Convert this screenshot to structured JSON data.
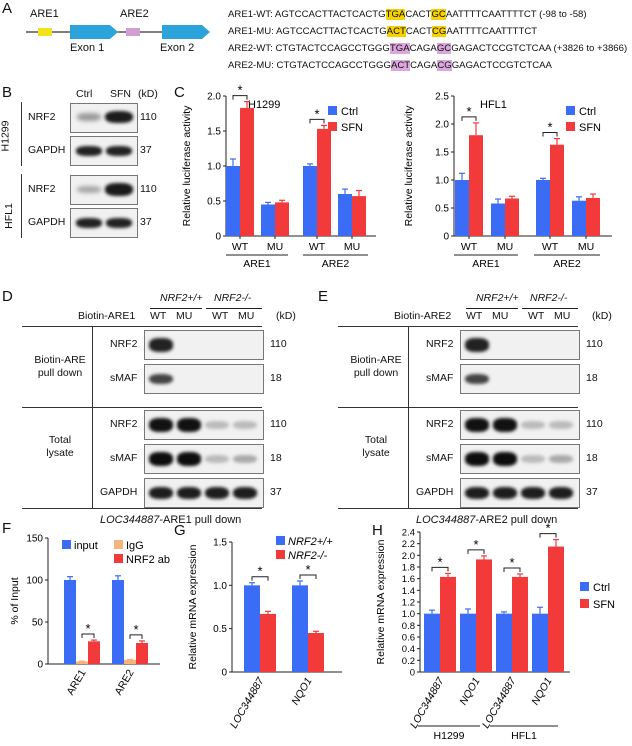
{
  "figure": {
    "panels": [
      "A",
      "B",
      "C",
      "D",
      "E",
      "F",
      "G",
      "H"
    ]
  },
  "panel_a": {
    "labels": [
      "ARE1",
      "ARE2",
      "Exon 1",
      "Exon 2"
    ],
    "seq_rows": [
      {
        "name": "ARE1-WT:",
        "pre": "AGTCCACTTACTCACTG",
        "h1": "TGA",
        "mid": "CACT",
        "h2": "GC",
        "post": "AATTTTCAATTTTCT",
        "range": " (-98 to -58)"
      },
      {
        "name": "ARE1-MU:",
        "pre": "AGTCCACTTACTCACTG",
        "h1": "ACT",
        "mid": "CACT",
        "h2": "CG",
        "post": "AATTTTCAATTTTCT",
        "range": ""
      },
      {
        "name": "ARE2-WT:",
        "pre": "CTGTACTCCAGCCTGGG",
        "h1": "TGA",
        "mid": "CAGA",
        "h2": "GC",
        "post": "GAGACTCCGTCTCAA",
        "range": " (+3826 to +3866)"
      },
      {
        "name": "ARE2-MU:",
        "pre": "CTGTACTCCAGCCTGGG",
        "h1": "ACT",
        "mid": "CAGA",
        "h2": "CG",
        "post": "GAGACTCCGTCTCAA",
        "range": ""
      }
    ],
    "colors": {
      "are1": "#f2e21a",
      "are2": "#cfa0d2",
      "exon": "#2da3dc",
      "highlight1": "#f6d200",
      "highlight2": "#dba7dc"
    }
  },
  "panel_b": {
    "ctrl": "Ctrl",
    "sfn": "SFN",
    "kd": "(kD)",
    "cell_lines": [
      "H1299",
      "HFL1"
    ],
    "rows": [
      {
        "name": "NRF2",
        "kd": "110"
      },
      {
        "name": "GAPDH",
        "kd": "37"
      },
      {
        "name": "NRF2",
        "kd": "110"
      },
      {
        "name": "GAPDH",
        "kd": "37"
      }
    ]
  },
  "panel_d": {
    "biotin": "Biotin-ARE1",
    "geno_pos": "NRF2+/+",
    "geno_neg": "NRF2-/-",
    "lanes": [
      "WT",
      "MU",
      "WT",
      "MU"
    ],
    "kd": "(kD)",
    "section1": "Biotin-ARE pull down",
    "section2": "Total lysate",
    "rows": [
      {
        "name": "NRF2",
        "kd": "110"
      },
      {
        "name": "sMAF",
        "kd": "18"
      },
      {
        "name": "NRF2",
        "kd": "110"
      },
      {
        "name": "sMAF",
        "kd": "18"
      },
      {
        "name": "GAPDH",
        "kd": "37"
      }
    ],
    "caption_gene": "LOC344887",
    "caption_rest": "-ARE1 pull down"
  },
  "panel_e": {
    "biotin": "Biotin-ARE2",
    "geno_pos": "NRF2+/+",
    "geno_neg": "NRF2-/-",
    "lanes": [
      "WT",
      "MU",
      "WT",
      "MU"
    ],
    "kd": "(kD)",
    "section1": "Biotin-ARE pull down",
    "section2": "Total lysate",
    "rows": [
      {
        "name": "NRF2",
        "kd": "110"
      },
      {
        "name": "sMAF",
        "kd": "18"
      },
      {
        "name": "NRF2",
        "kd": "110"
      },
      {
        "name": "sMAF",
        "kd": "18"
      },
      {
        "name": "GAPDH",
        "kd": "37"
      }
    ],
    "caption_gene": "LOC344887",
    "caption_rest": "-ARE2 pull down"
  },
  "chart_data": [
    {
      "panel": "C",
      "type": "bar",
      "title": "H1299",
      "ylabel": "Relative luciferase activity",
      "ylim": [
        0,
        2.0
      ],
      "yticks": [
        "0",
        "0.5",
        "1.0",
        "1.5",
        "2.0"
      ],
      "categories": [
        "WT",
        "MU",
        "WT",
        "MU"
      ],
      "groups": [
        "ARE1",
        "ARE2"
      ],
      "series": [
        {
          "name": "Ctrl",
          "color": "#3b6cf5",
          "values": [
            1.0,
            0.45,
            1.0,
            0.6
          ],
          "errors": [
            0.1,
            0.03,
            0.03,
            0.07
          ]
        },
        {
          "name": "SFN",
          "color": "#f23a3a",
          "values": [
            1.83,
            0.48,
            1.53,
            0.57
          ],
          "errors": [
            0.09,
            0.03,
            0.05,
            0.08
          ]
        }
      ],
      "significance": [
        "*",
        "",
        "*",
        ""
      ]
    },
    {
      "panel": "C",
      "type": "bar",
      "title": "HFL1",
      "ylabel": "Relative luciferase activity",
      "ylim": [
        0,
        2.5
      ],
      "yticks": [
        "0",
        "0.5",
        "1.0",
        "1.5",
        "2.0",
        "2.5"
      ],
      "categories": [
        "WT",
        "MU",
        "WT",
        "MU"
      ],
      "groups": [
        "ARE1",
        "ARE2"
      ],
      "series": [
        {
          "name": "Ctrl",
          "color": "#3b6cf5",
          "values": [
            1.0,
            0.58,
            1.0,
            0.63
          ],
          "errors": [
            0.12,
            0.08,
            0.03,
            0.07
          ]
        },
        {
          "name": "SFN",
          "color": "#f23a3a",
          "values": [
            1.8,
            0.67,
            1.63,
            0.68
          ],
          "errors": [
            0.22,
            0.04,
            0.11,
            0.07
          ]
        }
      ],
      "significance": [
        "*",
        "",
        "*",
        ""
      ]
    },
    {
      "panel": "F",
      "type": "bar",
      "ylabel": "% of Input",
      "ylim": [
        0,
        150
      ],
      "yticks": [
        "0",
        "50",
        "100",
        "150"
      ],
      "categories": [
        "ARE1",
        "ARE2"
      ],
      "series": [
        {
          "name": "input",
          "color": "#3b6cf5",
          "values": [
            100,
            100
          ],
          "errors": [
            4,
            5
          ]
        },
        {
          "name": "IgG",
          "color": "#f7b47a",
          "values": [
            3,
            5
          ],
          "errors": [
            0.5,
            0.5
          ]
        },
        {
          "name": "NRF2 ab",
          "color": "#f23a3a",
          "values": [
            27,
            25
          ],
          "errors": [
            1.5,
            2.5
          ]
        }
      ],
      "significance": [
        "*",
        "*"
      ]
    },
    {
      "panel": "G",
      "type": "bar",
      "ylabel": "Relative mRNA expression",
      "ylim": [
        0,
        1.5
      ],
      "yticks": [
        "0",
        "0.5",
        "1.0",
        "1.5"
      ],
      "categories": [
        "LOC344887",
        "NQO1"
      ],
      "series": [
        {
          "name": "NRF2+/+",
          "color": "#3b6cf5",
          "values": [
            1.0,
            1.0
          ],
          "errors": [
            0.03,
            0.05
          ]
        },
        {
          "name": "NRF2-/-",
          "color": "#f23a3a",
          "values": [
            0.67,
            0.45
          ],
          "errors": [
            0.03,
            0.02
          ]
        }
      ],
      "significance": [
        "*",
        "*"
      ]
    },
    {
      "panel": "H",
      "type": "bar",
      "ylabel": "Relative mRNA expression",
      "ylim": [
        0,
        2.4
      ],
      "yticks": [
        "0",
        "0.2",
        "0.4",
        "0.6",
        "0.8",
        "1.0",
        "1.2",
        "1.4",
        "1.6",
        "1.8",
        "2.0",
        "2.2",
        "2.4"
      ],
      "categories": [
        "LOC344887",
        "NQO1",
        "LOC344887",
        "NQO1"
      ],
      "groups": [
        "H1299",
        "HFL1"
      ],
      "series": [
        {
          "name": "Ctrl",
          "color": "#3b6cf5",
          "values": [
            1.0,
            1.0,
            1.0,
            1.0
          ],
          "errors": [
            0.06,
            0.08,
            0.03,
            0.11
          ]
        },
        {
          "name": "SFN",
          "color": "#f23a3a",
          "values": [
            1.63,
            1.93,
            1.63,
            2.15
          ],
          "errors": [
            0.06,
            0.06,
            0.05,
            0.12
          ]
        }
      ],
      "significance": [
        "*",
        "*",
        "*",
        "*"
      ]
    }
  ]
}
